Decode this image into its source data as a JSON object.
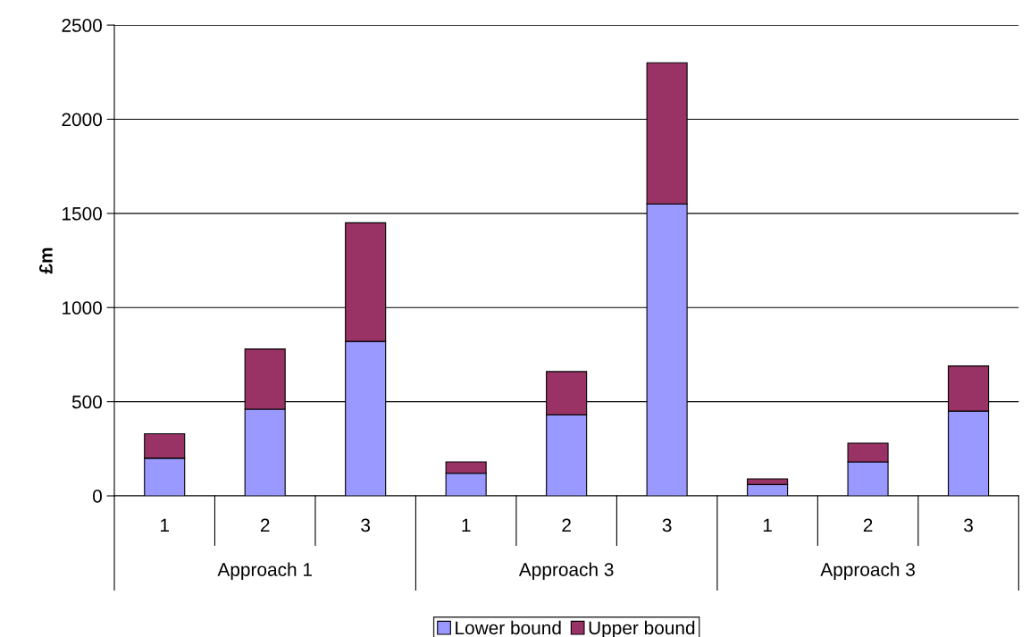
{
  "chart_data": {
    "type": "bar",
    "stacked": true,
    "ylabel": "£m",
    "categories": [
      "1",
      "2",
      "3",
      "1",
      "2",
      "3",
      "1",
      "2",
      "3"
    ],
    "annotations": [
      "Approach 1",
      "Approach 3",
      "Approach 3"
    ],
    "series": [
      {
        "name": "Lower bound",
        "color": "#9999ff",
        "values": [
          200,
          460,
          820,
          120,
          430,
          1550,
          60,
          180,
          450
        ]
      },
      {
        "name": "Upper bound",
        "color": "#993366",
        "values": [
          130,
          320,
          630,
          60,
          230,
          750,
          30,
          100,
          240
        ]
      }
    ],
    "ylim": [
      0,
      2500
    ],
    "yticks": [
      0,
      500,
      1000,
      1500,
      2000,
      2500
    ],
    "grid": "y",
    "legend": "bottom"
  }
}
